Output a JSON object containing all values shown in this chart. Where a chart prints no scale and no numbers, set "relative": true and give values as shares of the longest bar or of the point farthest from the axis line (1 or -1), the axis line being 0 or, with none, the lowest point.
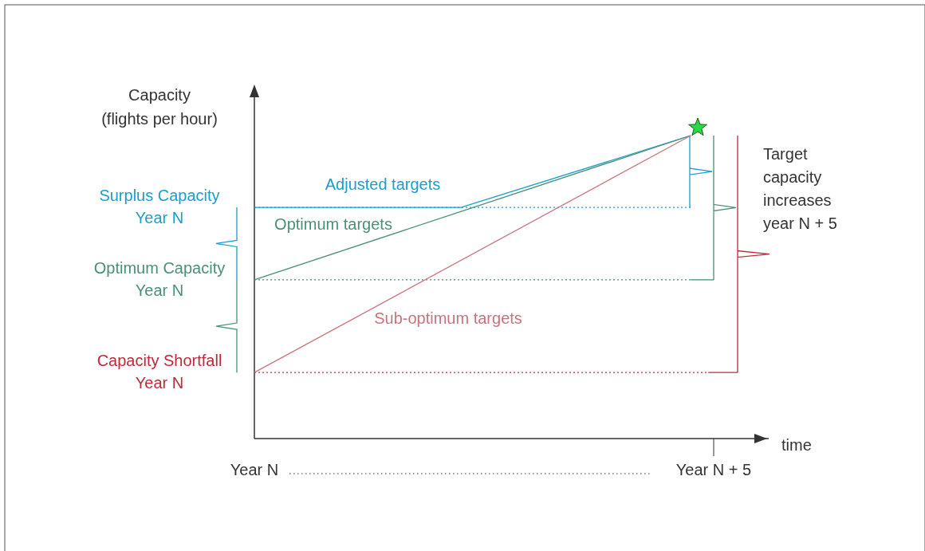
{
  "chart_data": {
    "type": "line",
    "relative": true,
    "xlabel": "time",
    "ylabel": "Capacity (flights per hour)",
    "categories": [
      "Year N",
      null,
      null,
      null,
      null,
      null,
      null,
      null,
      null,
      null,
      null,
      null,
      null,
      null,
      null,
      null,
      null,
      null,
      null,
      null,
      "Year N + 5"
    ],
    "series": [
      {
        "name": "Adjusted targets",
        "color": "#1a9fcc",
        "values": [
          0.763,
          null,
          null,
          null,
          null,
          null,
          null,
          null,
          null,
          0.763,
          null,
          null,
          null,
          null,
          null,
          null,
          null,
          null,
          null,
          1,
          null
        ]
      },
      {
        "name": "Optimum targets",
        "color": "#4a8f78",
        "values": [
          0.524,
          null,
          null,
          null,
          null,
          null,
          null,
          null,
          null,
          null,
          null,
          null,
          null,
          null,
          null,
          null,
          null,
          null,
          null,
          1,
          null
        ]
      },
      {
        "name": "Sub-optimum targets",
        "color": "#c9747c",
        "values": [
          0.218,
          null,
          null,
          null,
          null,
          null,
          null,
          null,
          null,
          null,
          null,
          null,
          null,
          null,
          null,
          null,
          null,
          null,
          null,
          1,
          null
        ]
      }
    ],
    "ref_lines": [
      {
        "axis": "y",
        "value": 0.763,
        "label": "Surplus Capacity Year N",
        "color": "#1a9fcc",
        "line_style": "dotted"
      },
      {
        "axis": "y",
        "value": 0.524,
        "label": "Optimum Capacity Year N",
        "color": "#4a8f78",
        "line_style": "dotted"
      },
      {
        "axis": "y",
        "value": 0.218,
        "label": "Capacity Shortfall Year N",
        "color": "#c0283c",
        "line_style": "dotted"
      }
    ],
    "annotations": [
      "Target capacity increases year N + 5"
    ],
    "line_style": "solid",
    "marker": "none"
  }
}
